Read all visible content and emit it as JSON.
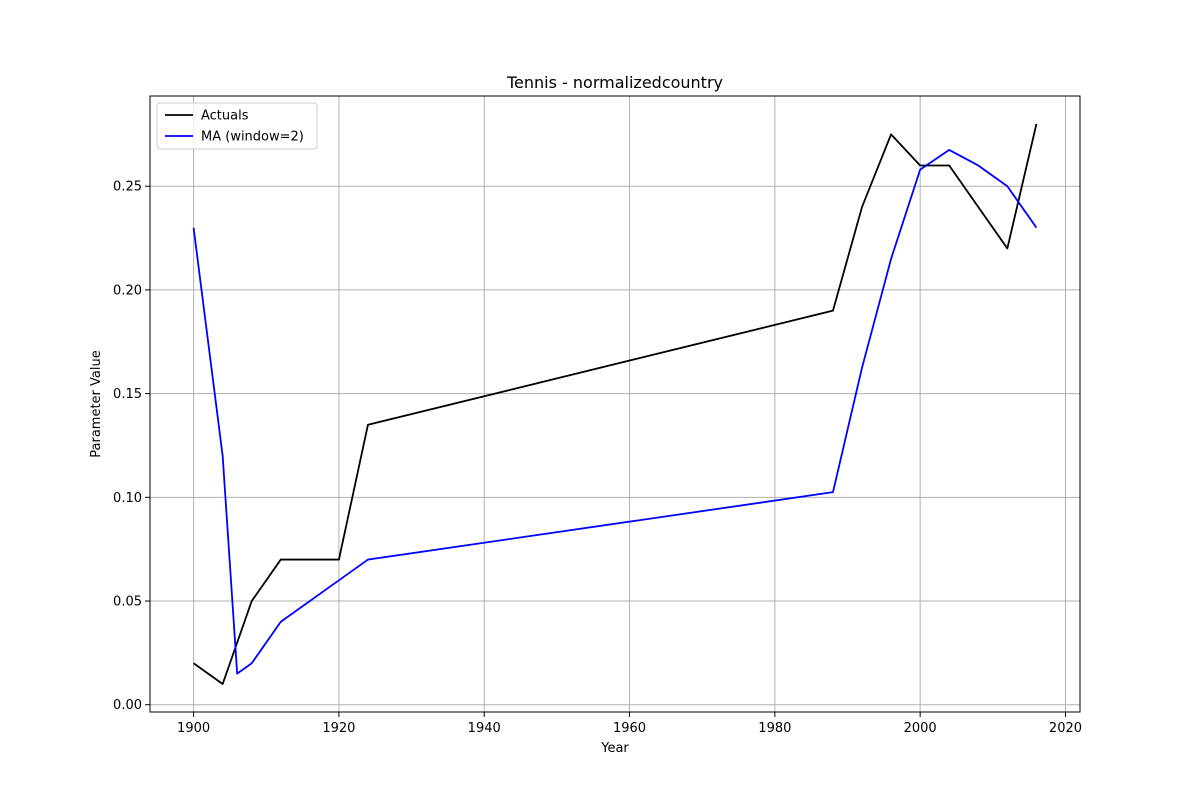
{
  "chart_data": {
    "type": "line",
    "title": "Tennis - normalizedcountry",
    "xlabel": "Year",
    "ylabel": "Parameter Value",
    "xlim": [
      1894,
      2022
    ],
    "ylim": [
      -0.0035,
      0.2935
    ],
    "xticks": [
      1900,
      1920,
      1940,
      1960,
      1980,
      2000,
      2020
    ],
    "yticks": [
      0.0,
      0.05,
      0.1,
      0.15,
      0.2,
      0.25
    ],
    "ytick_labels": [
      "0.00",
      "0.05",
      "0.10",
      "0.15",
      "0.20",
      "0.25"
    ],
    "grid": true,
    "legend_position": "upper-left",
    "series": [
      {
        "name": "Actuals",
        "color": "#000000",
        "x": [
          1900,
          1904,
          1908,
          1912,
          1920,
          1924,
          1988,
          1992,
          1996,
          2000,
          2004,
          2008,
          2012,
          2016
        ],
        "y": [
          0.02,
          0.01,
          0.05,
          0.07,
          0.07,
          0.135,
          0.19,
          0.24,
          0.275,
          0.26,
          0.26,
          0.24,
          0.22,
          0.28
        ]
      },
      {
        "name": "MA (window=2)",
        "color": "#0000ff",
        "x": [
          1900,
          1904,
          1906,
          1908,
          1912,
          1920,
          1924,
          1988,
          1992,
          1996,
          2000,
          2004,
          2008,
          2012,
          2016
        ],
        "y": [
          0.23,
          0.12,
          0.015,
          0.02,
          0.04,
          0.06,
          0.07,
          0.1025,
          0.1625,
          0.215,
          0.258,
          0.2675,
          0.26,
          0.25,
          0.23
        ]
      }
    ]
  }
}
